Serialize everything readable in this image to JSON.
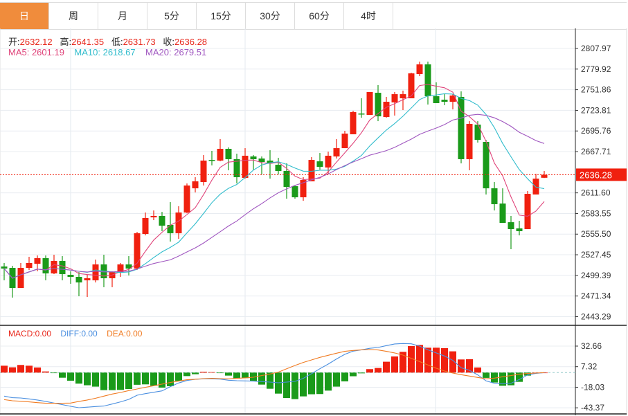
{
  "tabs": [
    {
      "label": "日",
      "active": true
    },
    {
      "label": "周"
    },
    {
      "label": "月"
    },
    {
      "label": "5分"
    },
    {
      "label": "15分"
    },
    {
      "label": "30分"
    },
    {
      "label": "60分"
    },
    {
      "label": "4时"
    }
  ],
  "ohlc_info": {
    "open_label": "开:",
    "open": "2632.12",
    "high_label": "高:",
    "high": "2641.35",
    "low_label": "低:",
    "low": "2631.73",
    "close_label": "收:",
    "close": "2636.28"
  },
  "ma_info": {
    "ma5": "MA5: 2601.19",
    "ma10": "MA10: 2618.67",
    "ma20": "MA20: 2679.51"
  },
  "macd_info": {
    "macd": "MACD:0.00",
    "diff": "DIFF:0.00",
    "dea": "DEA:0.00"
  },
  "colors": {
    "up": "#f0200f",
    "down": "#1a9a1a",
    "ma5": "#e0457b",
    "ma10": "#30bccc",
    "ma20": "#a057c0",
    "diff": "#4a8fe0",
    "dea": "#f07b22",
    "accent": "#f08c3c"
  },
  "chart_data": {
    "type": "candlestick",
    "price_axis": {
      "ticks": [
        "2807.97",
        "2779.92",
        "2751.86",
        "2723.81",
        "2695.76",
        "2667.71",
        "2611.60",
        "2583.55",
        "2555.50",
        "2527.45",
        "2499.39",
        "2471.34",
        "2443.29"
      ],
      "range": [
        2443.29,
        2807.97
      ]
    },
    "last_price": "2636.28",
    "candles": [
      [
        2511.5,
        2508.7,
        2516.2,
        2492.7
      ],
      [
        2509.6,
        2482.3,
        2512.4,
        2469.2
      ],
      [
        2482.3,
        2509.6,
        2516.2,
        2482.3
      ],
      [
        2509.6,
        2516.2,
        2524.7,
        2506.8
      ],
      [
        2515.2,
        2522.8,
        2526.5,
        2504.9
      ],
      [
        2522.8,
        2502.1,
        2526.5,
        2492.7
      ],
      [
        2502.1,
        2519.0,
        2527.5,
        2501.1
      ],
      [
        2519.0,
        2501.1,
        2525.6,
        2492.7
      ],
      [
        2500.2,
        2497.4,
        2504.9,
        2488.0
      ],
      [
        2497.4,
        2489.8,
        2503.9,
        2471.0
      ],
      [
        2492.7,
        2495.5,
        2500.2,
        2470.1
      ],
      [
        2492.7,
        2514.3,
        2520.9,
        2489.8
      ],
      [
        2514.3,
        2495.5,
        2527.5,
        2483.3
      ],
      [
        2495.5,
        2503.9,
        2504.9,
        2483.3
      ],
      [
        2503.9,
        2514.3,
        2516.2,
        2497.4
      ],
      [
        2514.3,
        2508.7,
        2525.6,
        2499.3
      ],
      [
        2508.7,
        2556.7,
        2558.5,
        2506.8
      ],
      [
        2555.7,
        2577.4,
        2584.9,
        2553.8
      ],
      [
        2578.3,
        2580.2,
        2587.7,
        2574.5
      ],
      [
        2580.2,
        2567.0,
        2585.8,
        2559.5
      ],
      [
        2568.0,
        2556.7,
        2599.0,
        2545.4
      ],
      [
        2556.7,
        2584.9,
        2593.4,
        2549.1
      ],
      [
        2584.9,
        2621.6,
        2624.4,
        2583.9
      ],
      [
        2617.8,
        2627.3,
        2632.9,
        2612.2
      ],
      [
        2626.3,
        2655.5,
        2663.0,
        2621.6
      ],
      [
        2656.4,
        2655.5,
        2668.7,
        2648.9
      ],
      [
        2655.5,
        2671.5,
        2684.7,
        2654.5
      ],
      [
        2671.5,
        2657.4,
        2673.4,
        2642.3
      ],
      [
        2657.4,
        2632.9,
        2664.9,
        2624.4
      ],
      [
        2632.0,
        2662.1,
        2672.4,
        2631.0
      ],
      [
        2661.1,
        2657.4,
        2663.0,
        2643.2
      ],
      [
        2658.3,
        2653.6,
        2661.1,
        2636.7
      ],
      [
        2655.5,
        2651.7,
        2669.6,
        2631.0
      ],
      [
        2649.8,
        2641.4,
        2659.3,
        2636.7
      ],
      [
        2641.4,
        2619.7,
        2651.7,
        2603.7
      ],
      [
        2620.7,
        2605.6,
        2621.6,
        2603.7
      ],
      [
        2605.6,
        2629.1,
        2632.9,
        2600.9
      ],
      [
        2627.3,
        2656.4,
        2660.2,
        2627.3
      ],
      [
        2654.5,
        2647.0,
        2665.8,
        2643.2
      ],
      [
        2646.1,
        2662.1,
        2667.7,
        2636.7
      ],
      [
        2661.1,
        2672.4,
        2684.7,
        2658.3
      ],
      [
        2672.4,
        2692.2,
        2696.0,
        2672.4
      ],
      [
        2691.3,
        2721.4,
        2723.3,
        2691.3
      ],
      [
        2719.5,
        2718.5,
        2740.2,
        2713.8
      ],
      [
        2717.6,
        2748.7,
        2748.7,
        2717.6
      ],
      [
        2747.7,
        2715.7,
        2758.1,
        2709.1
      ],
      [
        2714.8,
        2735.5,
        2742.1,
        2713.8
      ],
      [
        2734.6,
        2745.8,
        2748.7,
        2716.7
      ],
      [
        2740.2,
        2745.8,
        2750.6,
        2724.2
      ],
      [
        2740.2,
        2774.1,
        2775.0,
        2740.2
      ],
      [
        2773.1,
        2786.3,
        2790.1,
        2770.3
      ],
      [
        2786.3,
        2743.0,
        2790.1,
        2731.7
      ],
      [
        2743.0,
        2733.6,
        2761.9,
        2733.6
      ],
      [
        2738.3,
        2735.5,
        2746.8,
        2730.8
      ],
      [
        2735.5,
        2744.0,
        2745.8,
        2725.1
      ],
      [
        2742.1,
        2657.4,
        2749.6,
        2651.7
      ],
      [
        2657.4,
        2705.4,
        2709.1,
        2642.3
      ],
      [
        2704.4,
        2683.7,
        2709.1,
        2680.0
      ],
      [
        2680.9,
        2617.8,
        2683.7,
        2609.4
      ],
      [
        2617.8,
        2596.2,
        2626.3,
        2587.7
      ],
      [
        2597.1,
        2570.8,
        2617.8,
        2570.8
      ],
      [
        2571.7,
        2562.3,
        2580.2,
        2535.0
      ],
      [
        2563.3,
        2559.5,
        2573.6,
        2553.8
      ],
      [
        2562.3,
        2610.3,
        2614.1,
        2562.3
      ],
      [
        2609.4,
        2631.0,
        2637.6,
        2609.4
      ],
      [
        2632.12,
        2636.28,
        2641.35,
        2631.73
      ]
    ],
    "macd_axis": {
      "ticks": [
        "32.66",
        "7.32",
        "-18.03",
        "-43.37"
      ]
    },
    "macd_hist": [
      8.5,
      6.5,
      9.4,
      8.5,
      6.3,
      1.4,
      -0.3,
      -6.3,
      -10,
      -13.6,
      -15.6,
      -17.3,
      -21.6,
      -21.6,
      -21.3,
      -20.2,
      -15,
      -14.5,
      -16.2,
      -18.5,
      -16.8,
      -10.2,
      -4.3,
      -2,
      1.1,
      0.6,
      -0.2,
      -3.7,
      -7.4,
      -6.8,
      -10.8,
      -14.8,
      -19.9,
      -25.9,
      -31.3,
      -32.7,
      -29.3,
      -26.7,
      -26.4,
      -22.2,
      -17.3,
      -10.8,
      -4.5,
      -0.9,
      4.3,
      5.7,
      13.4,
      19.9,
      25.6,
      32.7,
      34.1,
      30.7,
      30.7,
      30.1,
      26.2,
      16.2,
      16.5,
      6.3,
      -6.5,
      -12.2,
      -16.2,
      -15.6,
      -11.4,
      -3.7,
      0,
      0
    ],
    "diff": [
      -29.0,
      -31.0,
      -31.3,
      -32.4,
      -33.8,
      -35.5,
      -37.5,
      -39.5,
      -41.5,
      -43.2,
      -42.6,
      -41.8,
      -41.2,
      -38.7,
      -36.1,
      -33.0,
      -27.9,
      -25.9,
      -24.2,
      -22.5,
      -17.3,
      -12.8,
      -9.7,
      -8.2,
      -7.7,
      -7.7,
      -8.0,
      -9.4,
      -10.0,
      -10.2,
      -10.5,
      -11.1,
      -11.7,
      -12.5,
      -11.7,
      -10.8,
      -7.1,
      -1.4,
      4.8,
      10.5,
      16.8,
      22.5,
      26.4,
      28.1,
      29.9,
      31.0,
      33.3,
      35.3,
      35.8,
      35.5,
      32.7,
      28.1,
      24.2,
      20.5,
      15.1,
      6.0,
      2.8,
      -2.8,
      -10.2,
      -13.1,
      -13.9,
      -13.1,
      -8.5,
      -2.8,
      -0.9,
      0
    ],
    "dea": [
      -33.3,
      -34.7,
      -35.3,
      -36.1,
      -37.0,
      -37.8,
      -37.8,
      -37.8,
      -37.5,
      -35.5,
      -33.8,
      -31.6,
      -29.0,
      -26.4,
      -24.5,
      -22.2,
      -20.2,
      -18.2,
      -16.2,
      -14.2,
      -12.2,
      -10.5,
      -8.8,
      -8.2,
      -7.4,
      -7.1,
      -7.4,
      -7.7,
      -7.1,
      -6.5,
      -5.7,
      -3.7,
      -1.7,
      0.6,
      4.8,
      8.8,
      12.5,
      15.6,
      18.8,
      21.3,
      23.9,
      26.2,
      27.3,
      28.1,
      28.4,
      27.9,
      26.2,
      24.2,
      21.6,
      17.6,
      13.6,
      9.4,
      5.4,
      2.0,
      -0.6,
      -2.6,
      -4.3,
      -6.0,
      -7.7,
      -6.8,
      -5.1,
      -3.7,
      -2.0,
      -1.1,
      -0.6,
      0
    ]
  }
}
